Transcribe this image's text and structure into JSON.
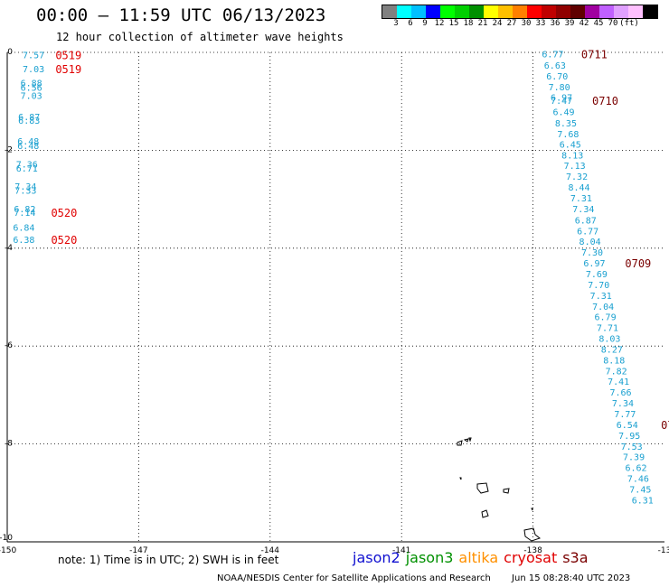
{
  "title": "00:00 – 11:59 UTC 06/13/2023",
  "subtitle": "12 hour collection of altimeter wave heights",
  "colorbar": {
    "colors": [
      "#808080",
      "#00ffff",
      "#00c0ff",
      "#0000ff",
      "#00ff00",
      "#00d000",
      "#009000",
      "#ffff00",
      "#ffc000",
      "#ff8000",
      "#ff0000",
      "#c00000",
      "#900000",
      "#600000",
      "#a000a0",
      "#c060ff",
      "#e0a0ff",
      "#ffc0ff",
      "#000000"
    ],
    "labels": [
      "3",
      "6",
      "9",
      "12",
      "15",
      "18",
      "21",
      "24",
      "27",
      "30",
      "33",
      "36",
      "39",
      "42",
      "45",
      "70",
      "(ft)"
    ]
  },
  "map": {
    "lon_range": [
      -150,
      -135
    ],
    "lat_range": [
      -10,
      0
    ],
    "lon_ticks": [
      "-150",
      "-147",
      "-144",
      "-141",
      "-138",
      "-13"
    ],
    "lat_ticks": [
      "0",
      "-2",
      "-4",
      "-6",
      "-8",
      "-10"
    ],
    "left_track": [
      {
        "lon": -149.4,
        "lat": -0.05,
        "v": "7.57"
      },
      {
        "lon": -149.4,
        "lat": -0.33,
        "v": "7.03"
      },
      {
        "lon": -149.45,
        "lat": -0.62,
        "v": "6.88"
      },
      {
        "lon": -149.45,
        "lat": -0.71,
        "v": "6.56"
      },
      {
        "lon": -149.45,
        "lat": -0.88,
        "v": "7.03"
      },
      {
        "lon": -149.5,
        "lat": -1.31,
        "v": "6.87"
      },
      {
        "lon": -149.5,
        "lat": -1.38,
        "v": "6.83"
      },
      {
        "lon": -149.52,
        "lat": -1.81,
        "v": "6.48"
      },
      {
        "lon": -149.52,
        "lat": -1.9,
        "v": "6.48"
      },
      {
        "lon": -149.55,
        "lat": -2.28,
        "v": "7.36"
      },
      {
        "lon": -149.55,
        "lat": -2.36,
        "v": "6.71"
      },
      {
        "lon": -149.58,
        "lat": -2.73,
        "v": "7.34"
      },
      {
        "lon": -149.58,
        "lat": -2.81,
        "v": "7.33"
      },
      {
        "lon": -149.6,
        "lat": -3.19,
        "v": "6.82"
      },
      {
        "lon": -149.6,
        "lat": -3.27,
        "v": "7.14"
      },
      {
        "lon": -149.62,
        "lat": -3.57,
        "v": "6.84"
      },
      {
        "lon": -149.62,
        "lat": -3.82,
        "v": "6.38"
      }
    ],
    "right_track": [
      {
        "lon": -137.55,
        "lat": -0.03,
        "v": "6.77"
      },
      {
        "lon": -137.5,
        "lat": -0.26,
        "v": "6.63"
      },
      {
        "lon": -137.45,
        "lat": -0.48,
        "v": "6.70"
      },
      {
        "lon": -137.4,
        "lat": -0.7,
        "v": "7.80"
      },
      {
        "lon": -137.35,
        "lat": -0.91,
        "v": "6.97"
      },
      {
        "lon": -137.35,
        "lat": -0.98,
        "v": "7.47"
      },
      {
        "lon": -137.3,
        "lat": -1.21,
        "v": "6.49"
      },
      {
        "lon": -137.25,
        "lat": -1.44,
        "v": "8.35"
      },
      {
        "lon": -137.2,
        "lat": -1.66,
        "v": "7.68"
      },
      {
        "lon": -137.15,
        "lat": -1.87,
        "v": "6.45"
      },
      {
        "lon": -137.1,
        "lat": -2.09,
        "v": "8.13"
      },
      {
        "lon": -137.05,
        "lat": -2.31,
        "v": "7.13"
      },
      {
        "lon": -137.0,
        "lat": -2.53,
        "v": "7.32"
      },
      {
        "lon": -136.95,
        "lat": -2.75,
        "v": "8.44"
      },
      {
        "lon": -136.9,
        "lat": -2.97,
        "v": "7.31"
      },
      {
        "lon": -136.85,
        "lat": -3.19,
        "v": "7.34"
      },
      {
        "lon": -136.8,
        "lat": -3.42,
        "v": "6.87"
      },
      {
        "lon": -136.75,
        "lat": -3.64,
        "v": "6.77"
      },
      {
        "lon": -136.7,
        "lat": -3.86,
        "v": "8.04"
      },
      {
        "lon": -136.65,
        "lat": -4.08,
        "v": "7.30"
      },
      {
        "lon": -136.6,
        "lat": -4.3,
        "v": "6.97"
      },
      {
        "lon": -136.55,
        "lat": -4.52,
        "v": "7.69"
      },
      {
        "lon": -136.5,
        "lat": -4.74,
        "v": "7.70"
      },
      {
        "lon": -136.45,
        "lat": -4.96,
        "v": "7.31"
      },
      {
        "lon": -136.4,
        "lat": -5.18,
        "v": "7.04"
      },
      {
        "lon": -136.35,
        "lat": -5.4,
        "v": "6.79"
      },
      {
        "lon": -136.3,
        "lat": -5.62,
        "v": "7.71"
      },
      {
        "lon": -136.25,
        "lat": -5.84,
        "v": "8.03"
      },
      {
        "lon": -136.2,
        "lat": -6.06,
        "v": "8.27"
      },
      {
        "lon": -136.15,
        "lat": -6.28,
        "v": "8.18"
      },
      {
        "lon": -136.1,
        "lat": -6.5,
        "v": "7.82"
      },
      {
        "lon": -136.05,
        "lat": -6.72,
        "v": "7.41"
      },
      {
        "lon": -136.0,
        "lat": -6.94,
        "v": "7.66"
      },
      {
        "lon": -135.95,
        "lat": -7.16,
        "v": "7.34"
      },
      {
        "lon": -135.9,
        "lat": -7.38,
        "v": "7.77"
      },
      {
        "lon": -135.85,
        "lat": -7.6,
        "v": "6.54"
      },
      {
        "lon": -135.8,
        "lat": -7.82,
        "v": "7.95"
      },
      {
        "lon": -135.75,
        "lat": -8.04,
        "v": "7.53"
      },
      {
        "lon": -135.7,
        "lat": -8.26,
        "v": "7.39"
      },
      {
        "lon": -135.65,
        "lat": -8.48,
        "v": "6.62"
      },
      {
        "lon": -135.6,
        "lat": -8.7,
        "v": "7.46"
      },
      {
        "lon": -135.55,
        "lat": -8.92,
        "v": "7.45"
      },
      {
        "lon": -135.5,
        "lat": -9.14,
        "v": "6.31"
      }
    ],
    "time_labels": [
      {
        "lon": -148.9,
        "lat": -0.05,
        "t": "0519",
        "sat": "cryosat"
      },
      {
        "lon": -148.9,
        "lat": -0.33,
        "t": "0519",
        "sat": "cryosat"
      },
      {
        "lon": -149.0,
        "lat": -3.27,
        "t": "0520",
        "sat": "cryosat"
      },
      {
        "lon": -149.0,
        "lat": -3.82,
        "t": "0520",
        "sat": "cryosat"
      },
      {
        "lon": -136.9,
        "lat": -0.03,
        "t": "0711",
        "sat": "s3a"
      },
      {
        "lon": -136.65,
        "lat": -0.98,
        "t": "0710",
        "sat": "s3a"
      },
      {
        "lon": -135.9,
        "lat": -4.3,
        "t": "0709",
        "sat": "s3a"
      },
      {
        "lon": -135.08,
        "lat": -7.6,
        "t": "07",
        "sat": "s3a"
      }
    ]
  },
  "note": "note: 1) Time is in UTC; 2) SWH is in feet",
  "legend": [
    {
      "name": "jason2",
      "color": "#1010d0"
    },
    {
      "name": "jason3",
      "color": "#009000"
    },
    {
      "name": "altika",
      "color": "#ff9000"
    },
    {
      "name": "cryosat",
      "color": "#e00000"
    },
    {
      "name": "s3a",
      "color": "#7a0000"
    }
  ],
  "footer": {
    "agency": "NOAA/NESDIS Center for Satellite Applications and Research",
    "timestamp": "Jun 15 08:28:40 UTC 2023"
  }
}
